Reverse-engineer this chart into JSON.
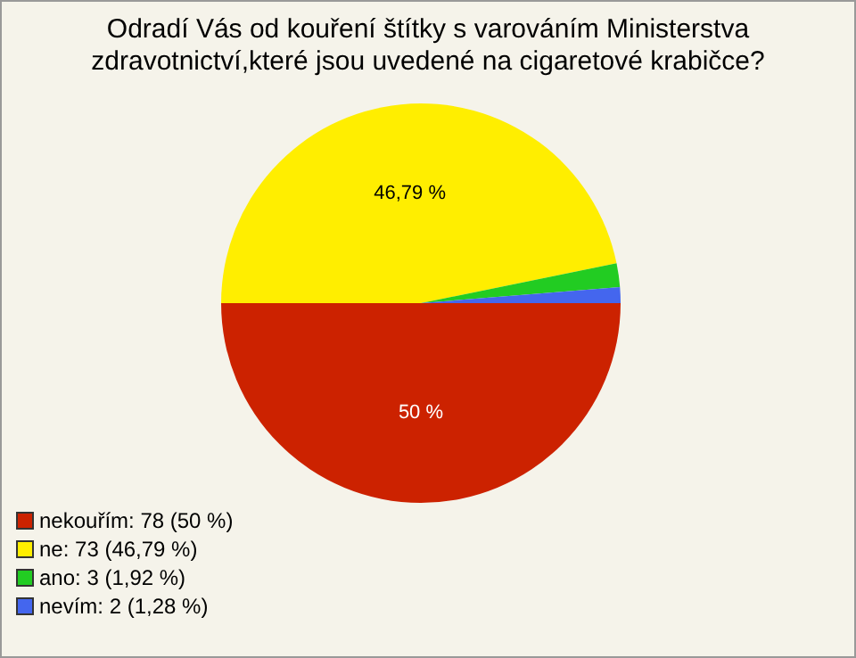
{
  "chart_data": {
    "type": "pie",
    "title": "Odradí Vás od kouření štítky s varováním Ministerstva zdravotnictví,které jsou uvedené na cigaretové krabičce?",
    "categories": [
      "nekouřím: 78 (50 %)",
      "ne: 73 (46,79 %)",
      "ano: 3 (1,92 %)",
      "nevím: 2 (1,28 %)"
    ],
    "values": [
      50,
      46.79,
      1.92,
      1.28
    ],
    "colors": [
      "#cc2200",
      "#ffee00",
      "#22cc22",
      "#4466ee"
    ],
    "value_labels": [
      "50 %",
      "46,79 %",
      null,
      null
    ],
    "legend": "bottom left"
  }
}
